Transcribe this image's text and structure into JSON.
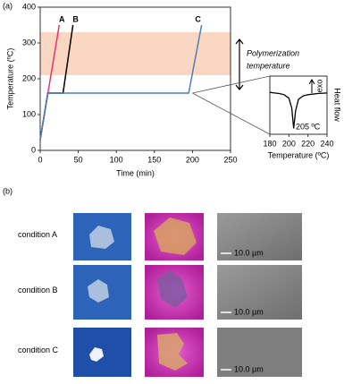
{
  "panel_a_label": "(a)",
  "panel_b_label": "(b)",
  "chart_data": [
    {
      "type": "line",
      "xlabel": "Time (min)",
      "ylabel": "Temperature (ºC)",
      "xlim": [
        0,
        250
      ],
      "xticks": [
        0,
        50,
        100,
        150,
        200,
        250
      ],
      "ylim": [
        0,
        400
      ],
      "yticks": [
        0,
        100,
        200,
        300,
        400
      ],
      "shaded_range": [
        210,
        330
      ],
      "shaded_color": "#fad7c2",
      "annotation": [
        "Polymerization",
        "temperature"
      ],
      "series": [
        {
          "name": "A",
          "color": "#e8336d",
          "x": [
            0,
            25
          ],
          "values": [
            30,
            350
          ]
        },
        {
          "name": "B",
          "color": "#000000",
          "x": [
            0,
            10,
            30,
            43
          ],
          "values": [
            30,
            160,
            160,
            350
          ]
        },
        {
          "name": "C",
          "color": "#4f7fb8",
          "x": [
            0,
            10,
            195,
            212
          ],
          "values": [
            30,
            160,
            160,
            350
          ]
        }
      ]
    },
    {
      "type": "line",
      "xlabel": "Temperature (ºC)",
      "ylabel": "Heat flow",
      "exo_label": "exo",
      "peak_label": "205 ºC",
      "xlim": [
        180,
        240
      ],
      "xticks": [
        180,
        200,
        220,
        240
      ],
      "ylim": [
        0,
        10
      ],
      "series": [
        {
          "color": "#000000",
          "x": [
            180,
            185,
            190,
            195,
            200,
            203,
            205,
            207,
            210,
            215,
            220,
            230,
            240
          ],
          "values": [
            7.2,
            7.1,
            7.0,
            6.8,
            6.2,
            4.5,
            1.0,
            4.0,
            6.0,
            6.6,
            6.8,
            7.0,
            7.1
          ]
        }
      ]
    }
  ],
  "conditions": [
    "condition A",
    "condition B",
    "condition C"
  ],
  "scale_bars": [
    "10.0 µm",
    "10.0 µm",
    "10.0 µm"
  ]
}
